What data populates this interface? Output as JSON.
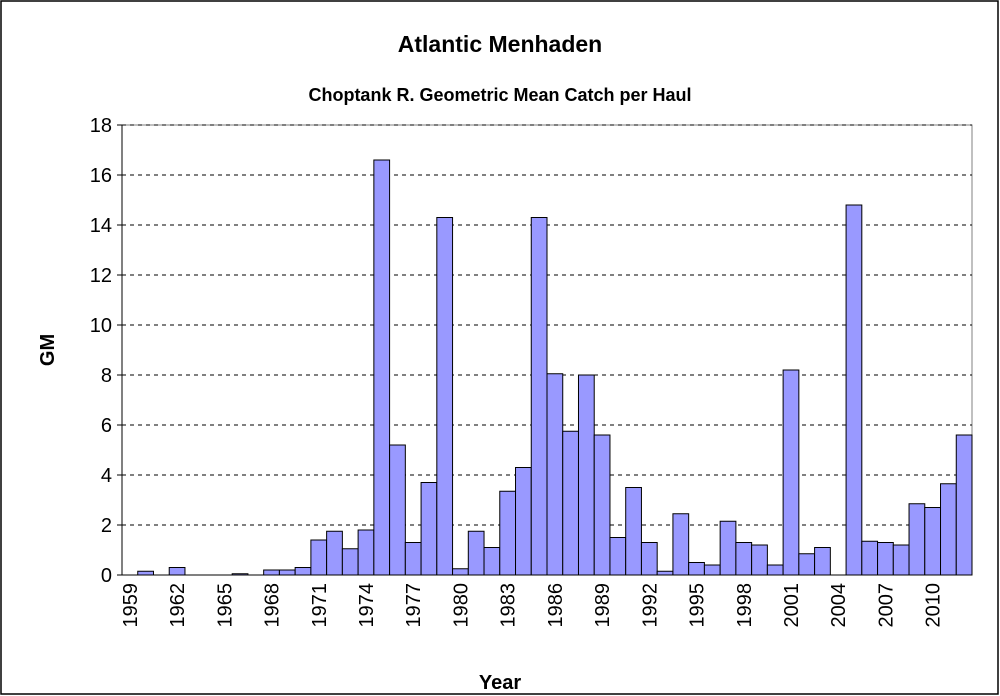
{
  "chart_data": {
    "type": "bar",
    "title": "Atlantic Menhaden",
    "subtitle": "Choptank R. Geometric Mean Catch per Haul",
    "xlabel": "Year",
    "ylabel": "GM",
    "categories": [
      "1959",
      null,
      null,
      "1962",
      null,
      null,
      "1965",
      null,
      null,
      "1968",
      null,
      null,
      "1971",
      null,
      null,
      "1974",
      null,
      null,
      "1977",
      null,
      null,
      "1980",
      null,
      null,
      "1983",
      null,
      null,
      "1986",
      null,
      null,
      "1989",
      null,
      null,
      "1992",
      null,
      null,
      "1995",
      null,
      null,
      "1998",
      null,
      null,
      "2001",
      null,
      null,
      "2004",
      null,
      null,
      "2007",
      null,
      null,
      "2010",
      null,
      null
    ],
    "values": [
      0,
      0.15,
      0,
      0.3,
      0,
      0,
      0,
      0.05,
      0,
      0.2,
      0.2,
      0.3,
      1.4,
      1.75,
      1.05,
      1.8,
      16.6,
      5.2,
      1.3,
      3.7,
      14.3,
      0.25,
      1.75,
      1.1,
      3.35,
      4.3,
      14.3,
      8.05,
      5.75,
      8.0,
      5.6,
      1.5,
      3.5,
      1.3,
      0.15,
      2.45,
      0.5,
      0.4,
      2.15,
      1.3,
      1.2,
      0.4,
      8.2,
      0.85,
      1.1,
      0,
      14.8,
      1.35,
      1.3,
      1.2,
      2.85,
      2.7,
      3.65,
      5.6
    ],
    "color": "#9999ff",
    "ylim": [
      0,
      18
    ],
    "yticks": [
      0,
      2,
      4,
      6,
      8,
      10,
      12,
      14,
      16,
      18
    ],
    "grid": true
  }
}
